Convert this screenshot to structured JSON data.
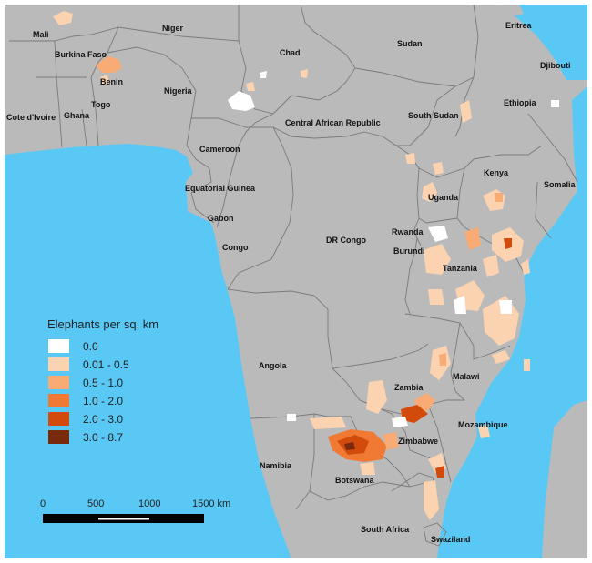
{
  "colors": {
    "ocean": "#5ac8f5",
    "land": "#bababa",
    "border": "#7a7a7a",
    "label": "#111111",
    "frame": "#ffffff"
  },
  "legend": {
    "title": "Elephants per sq. km",
    "items": [
      {
        "label": "0.0",
        "color": "#ffffff"
      },
      {
        "label": "0.01 - 0.5",
        "color": "#fbd3b0"
      },
      {
        "label": "0.5 - 1.0",
        "color": "#f8ab74"
      },
      {
        "label": "1.0 - 2.0",
        "color": "#f07a33"
      },
      {
        "label": "2.0 - 3.0",
        "color": "#d24b0d"
      },
      {
        "label": "3.0 - 8.7",
        "color": "#7a2a0c"
      }
    ]
  },
  "scale_bar": {
    "ticks": [
      "0",
      "500",
      "1000"
    ],
    "end_label": "1500 km"
  },
  "countries": [
    "Mali",
    "Niger",
    "Burkina Faso",
    "Benin",
    "Nigeria",
    "Chad",
    "Sudan",
    "Eritrea",
    "Djibouti",
    "Ethiopia",
    "Togo",
    "Ghana",
    "Cote d'Ivoire",
    "Cameroon",
    "Central African Republic",
    "South Sudan",
    "Somalia",
    "Kenya",
    "Uganda",
    "Equatorial Guinea",
    "Gabon",
    "Congo",
    "DR Congo",
    "Rwanda",
    "Burundi",
    "Tanzania",
    "Angola",
    "Malawi",
    "Zambia",
    "Mozambique",
    "Zimbabwe",
    "Namibia",
    "Botswana",
    "South Africa",
    "Swaziland"
  ]
}
